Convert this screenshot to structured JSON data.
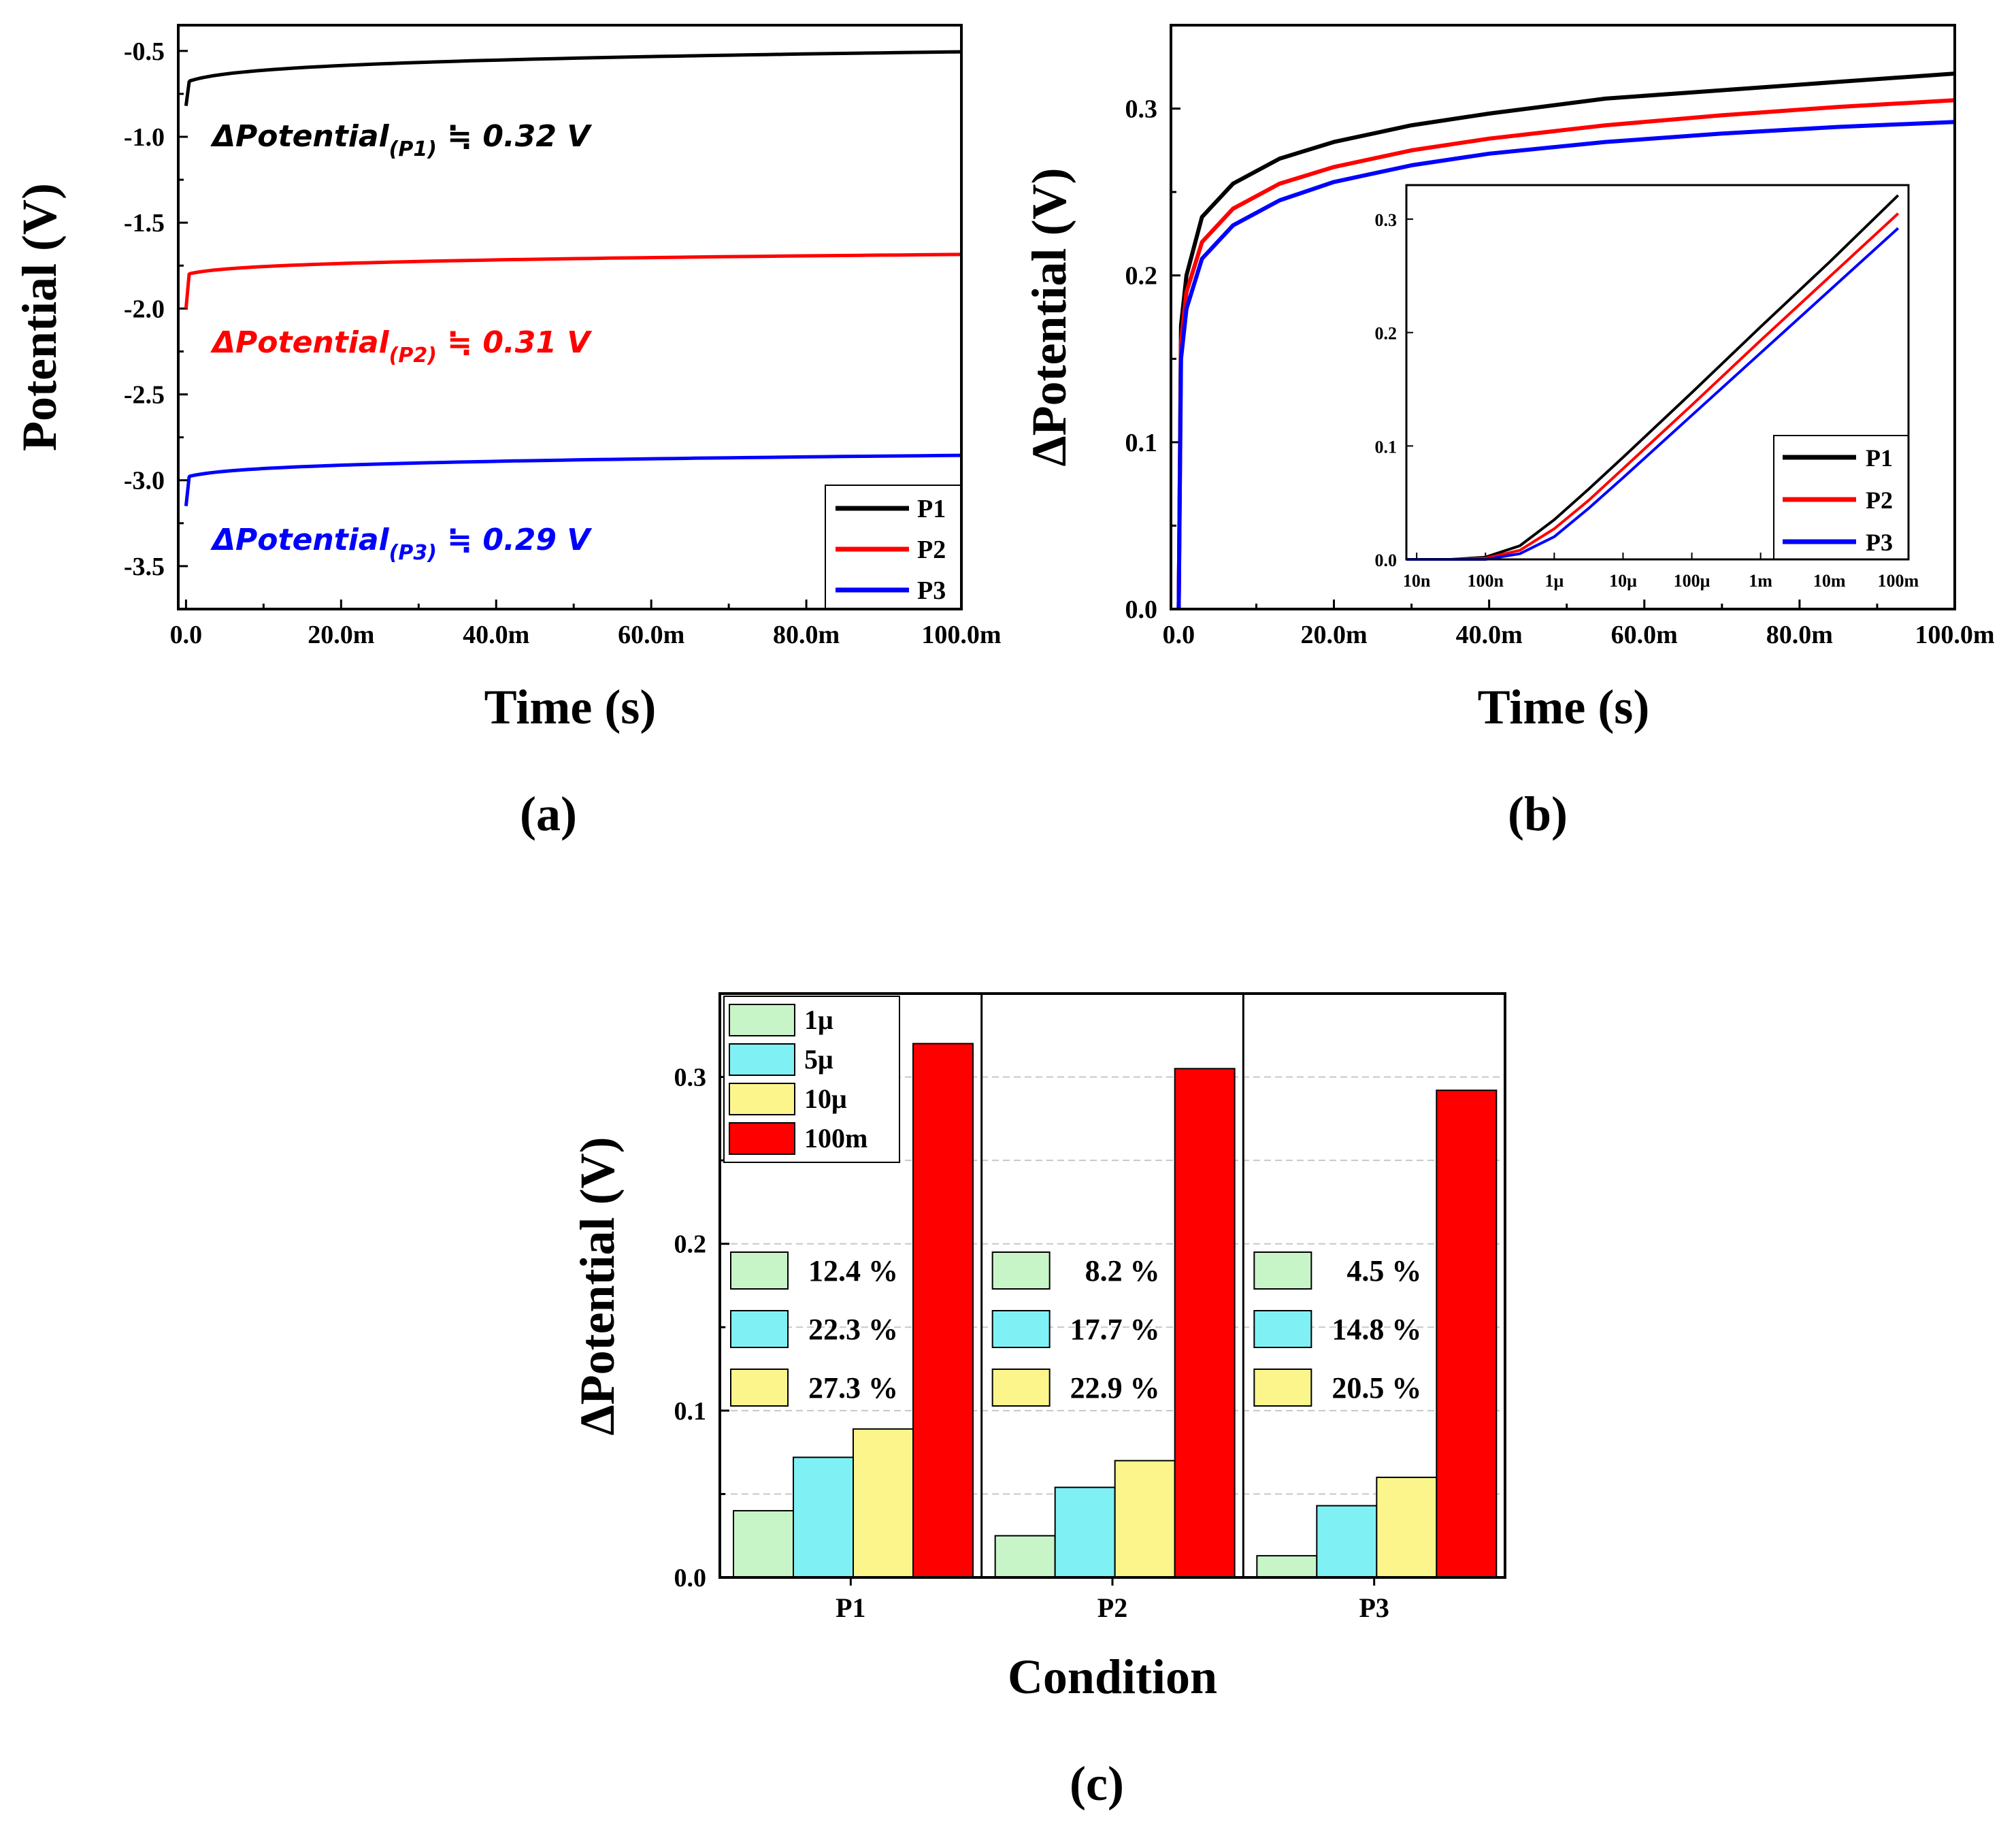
{
  "chart_data": [
    {
      "id": "a",
      "type": "line",
      "panel_label": "(a)",
      "xlabel": "Time (s)",
      "ylabel": "Potential (V)",
      "xlim": [
        -0.001,
        0.1
      ],
      "ylim": [
        -3.75,
        -0.35
      ],
      "x_ticks": [
        0,
        0.02,
        0.04,
        0.06,
        0.08,
        0.1
      ],
      "x_tick_labels": [
        "0.0",
        "20.0m",
        "40.0m",
        "60.0m",
        "80.0m",
        "100.0m"
      ],
      "y_ticks": [
        -0.5,
        -1.0,
        -1.5,
        -2.0,
        -2.5,
        -3.0,
        -3.5
      ],
      "y_tick_labels": [
        "-0.5",
        "-1.0",
        "-1.5",
        "-2.0",
        "-2.5",
        "-3.0",
        "-3.5"
      ],
      "legend": {
        "position": "bottom-right",
        "entries": [
          "P1",
          "P2",
          "P3"
        ]
      },
      "series": [
        {
          "name": "P1",
          "color": "#000000",
          "start": -0.82,
          "jump": -0.68,
          "final": -0.505
        },
        {
          "name": "P2",
          "color": "#ff0000",
          "start": -2.0,
          "jump": -1.8,
          "final": -1.685
        },
        {
          "name": "P3",
          "color": "#0000ff",
          "start": -3.15,
          "jump": -2.98,
          "final": -2.855
        }
      ],
      "annotations": [
        {
          "series": "P1",
          "lead": "ΔPotential",
          "sub": "(P1)",
          "tail": " ≒ 0.32 V",
          "color": "#000000"
        },
        {
          "series": "P2",
          "lead": "ΔPotential",
          "sub": "(P2)",
          "tail": " ≒ 0.31 V",
          "color": "#ff0000"
        },
        {
          "series": "P3",
          "lead": "ΔPotential",
          "sub": "(P3)",
          "tail": " ≒ 0.29 V",
          "color": "#0000ff"
        }
      ]
    },
    {
      "id": "b",
      "type": "line",
      "panel_label": "(b)",
      "xlabel": "Time (s)",
      "ylabel": "ΔPotential (V)",
      "xlim": [
        -0.001,
        0.1
      ],
      "ylim": [
        0,
        0.35
      ],
      "x_ticks": [
        0,
        0.02,
        0.04,
        0.06,
        0.08,
        0.1
      ],
      "x_tick_labels": [
        "0.0",
        "20.0m",
        "40.0m",
        "60.0m",
        "80.0m",
        "100.0m"
      ],
      "y_ticks": [
        0,
        0.1,
        0.2,
        0.3
      ],
      "y_tick_labels": [
        "0.0",
        "0.1",
        "0.2",
        "0.3"
      ],
      "series": [
        {
          "name": "P1",
          "color": "#000000",
          "x": [
            0,
            0.0003,
            0.001,
            0.003,
            0.007,
            0.013,
            0.02,
            0.03,
            0.04,
            0.055,
            0.07,
            0.085,
            0.1
          ],
          "y": [
            0,
            0.17,
            0.2,
            0.235,
            0.255,
            0.27,
            0.28,
            0.29,
            0.297,
            0.306,
            0.311,
            0.316,
            0.321
          ]
        },
        {
          "name": "P2",
          "color": "#ff0000",
          "x": [
            0,
            0.0003,
            0.001,
            0.003,
            0.007,
            0.013,
            0.02,
            0.03,
            0.04,
            0.055,
            0.07,
            0.085,
            0.1
          ],
          "y": [
            0,
            0.16,
            0.19,
            0.22,
            0.24,
            0.255,
            0.265,
            0.275,
            0.282,
            0.29,
            0.296,
            0.301,
            0.305
          ]
        },
        {
          "name": "P3",
          "color": "#0000ff",
          "x": [
            0,
            0.0003,
            0.001,
            0.003,
            0.007,
            0.013,
            0.02,
            0.03,
            0.04,
            0.055,
            0.07,
            0.085,
            0.1
          ],
          "y": [
            0,
            0.15,
            0.18,
            0.21,
            0.23,
            0.245,
            0.256,
            0.266,
            0.273,
            0.28,
            0.285,
            0.289,
            0.292
          ]
        }
      ],
      "inset": {
        "type": "line",
        "x_scale": "log",
        "xlim_log10": [
          -8.15,
          -0.85
        ],
        "ylim": [
          0,
          0.33
        ],
        "x_ticks_log10": [
          -8,
          -7,
          -6,
          -5,
          -4,
          -3,
          -2,
          -1
        ],
        "x_tick_labels": [
          "10n",
          "100n",
          "1μ",
          "10μ",
          "100μ",
          "1m",
          "10m",
          "100m"
        ],
        "y_ticks": [
          0,
          0.1,
          0.2,
          0.3
        ],
        "y_tick_labels": [
          "0.0",
          "0.1",
          "0.2",
          "0.3"
        ],
        "legend": {
          "position": "bottom-right",
          "entries": [
            "P1",
            "P2",
            "P3"
          ]
        },
        "series": [
          {
            "name": "P1",
            "color": "#000000",
            "log10_x": [
              -8.15,
              -7.5,
              -7,
              -6.5,
              -6,
              -5.5,
              -5,
              -4,
              -3,
              -2,
              -1
            ],
            "y": [
              0,
              0,
              0.002,
              0.012,
              0.035,
              0.062,
              0.09,
              0.147,
              0.205,
              0.262,
              0.321
            ]
          },
          {
            "name": "P2",
            "color": "#ff0000",
            "log10_x": [
              -8.15,
              -7.5,
              -7,
              -6.5,
              -6,
              -5.5,
              -5,
              -4,
              -3,
              -2,
              -1
            ],
            "y": [
              0,
              0,
              0.001,
              0.008,
              0.027,
              0.052,
              0.08,
              0.136,
              0.193,
              0.249,
              0.305
            ]
          },
          {
            "name": "P3",
            "color": "#0000ff",
            "log10_x": [
              -8.15,
              -7.5,
              -7,
              -6.5,
              -6,
              -5.5,
              -5,
              -4,
              -3,
              -2,
              -1
            ],
            "y": [
              0,
              0,
              0,
              0.005,
              0.02,
              0.045,
              0.072,
              0.127,
              0.182,
              0.237,
              0.292
            ]
          }
        ]
      }
    },
    {
      "id": "c",
      "type": "bar",
      "panel_label": "(c)",
      "xlabel": "Condition",
      "ylabel": "ΔPotential (V)",
      "ylim": [
        0,
        0.35
      ],
      "y_ticks": [
        0,
        0.1,
        0.2,
        0.3
      ],
      "y_tick_labels": [
        "0.0",
        "0.1",
        "0.2",
        "0.3"
      ],
      "grid": true,
      "categories": [
        "P1",
        "P2",
        "P3"
      ],
      "legend": {
        "position": "top-left",
        "entries": [
          "1μ",
          "5μ",
          "10μ",
          "100m"
        ]
      },
      "series": [
        {
          "name": "1μ",
          "color": "#c8f5c8",
          "values": [
            0.04,
            0.025,
            0.013
          ]
        },
        {
          "name": "5μ",
          "color": "#7ff1f5",
          "values": [
            0.072,
            0.054,
            0.043
          ]
        },
        {
          "name": "10μ",
          "color": "#fbf58c",
          "values": [
            0.089,
            0.07,
            0.06
          ]
        },
        {
          "name": "100m",
          "color": "#ff0000",
          "values": [
            0.32,
            0.305,
            0.292
          ]
        }
      ],
      "ratio_labels": [
        [
          "12.4 %",
          "22.3 %",
          "27.3 %"
        ],
        [
          "8.2 %",
          "17.7 %",
          "22.9 %"
        ],
        [
          "4.5 %",
          "14.8 %",
          "20.5 %"
        ]
      ]
    }
  ]
}
